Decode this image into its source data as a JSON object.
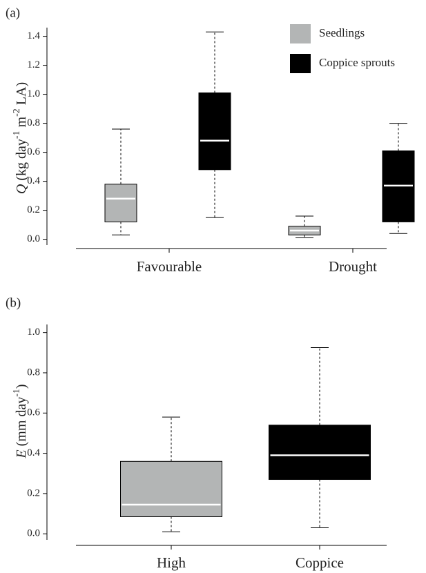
{
  "chart_data": [
    {
      "type": "box",
      "panel_label": "(a)",
      "ylabel": [
        "Q",
        " (kg day",
        "-1",
        " m",
        "-2",
        " LA)"
      ],
      "categories": [
        "Favourable",
        "Drought"
      ],
      "series": [
        {
          "name": "Seedlings",
          "color": "#b3b5b5",
          "values": [
            [
              0.03,
              0.12,
              0.28,
              0.38,
              0.76
            ],
            [
              0.01,
              0.03,
              0.06,
              0.09,
              0.16
            ]
          ]
        },
        {
          "name": "Coppice sprouts",
          "color": "#000000",
          "values": [
            [
              0.15,
              0.48,
              0.68,
              1.01,
              1.43
            ],
            [
              0.04,
              0.12,
              0.37,
              0.61,
              0.8
            ]
          ]
        }
      ],
      "ylim": [
        -0.04,
        1.46
      ],
      "yticks": [
        {
          "value": 0,
          "label": "0.0"
        },
        0.2,
        0.4,
        0.6,
        0.8,
        {
          "value": 1,
          "label": "1.0"
        },
        1.2,
        1.4
      ]
    },
    {
      "type": "box",
      "panel_label": "(b)",
      "ylabel": [
        "E",
        " (mm day",
        "-1",
        ")"
      ],
      "categories": [
        "High",
        "Coppice"
      ],
      "colors": [
        "#b3b5b5",
        "#000000"
      ],
      "values": [
        [
          0.01,
          0.085,
          0.145,
          0.36,
          0.58
        ],
        [
          0.03,
          0.27,
          0.39,
          0.54,
          0.925
        ]
      ],
      "ylim": [
        -0.03,
        1.04
      ],
      "yticks": [
        {
          "value": 0,
          "label": "0.0"
        },
        0.2,
        0.4,
        0.6,
        0.8,
        {
          "value": 1,
          "label": "1.0"
        }
      ]
    }
  ]
}
